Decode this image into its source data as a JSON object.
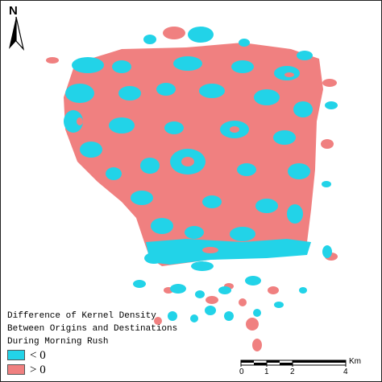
{
  "map": {
    "north_label": "N",
    "colors": {
      "negative": "#22d3e8",
      "positive": "#f08080",
      "background": "#ffffff"
    }
  },
  "legend": {
    "title_lines": [
      "Difference of Kernel Density",
      "Between Origins and Destinations",
      "During Morning Rush"
    ],
    "items": [
      {
        "label": "< 0",
        "color": "#22d3e8"
      },
      {
        "label": "> 0",
        "color": "#f08080"
      }
    ]
  },
  "scale_bar": {
    "unit": "Km",
    "ticks": [
      "0",
      "1",
      "2",
      "4"
    ]
  }
}
